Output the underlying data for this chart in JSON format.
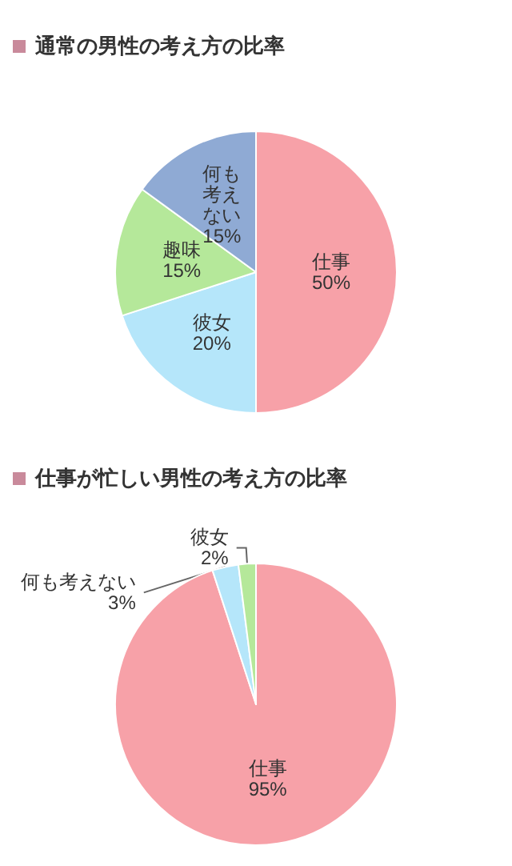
{
  "chart_data": [
    {
      "type": "pie",
      "title": "通常の男性の考え方の比率",
      "categories": [
        "仕事",
        "彼女",
        "趣味",
        "何も考えない"
      ],
      "values": [
        50,
        20,
        15,
        15
      ],
      "colors": [
        "#f7a1a8",
        "#b5e6fa",
        "#b5e89a",
        "#8faad4"
      ],
      "value_labels": [
        "50%",
        "20%",
        "15%",
        "15%"
      ]
    },
    {
      "type": "pie",
      "title": "仕事が忙しい男性の考え方の比率",
      "categories": [
        "仕事",
        "何も考えない",
        "彼女"
      ],
      "values": [
        95,
        3,
        2
      ],
      "colors": [
        "#f7a1a8",
        "#b5e6fa",
        "#b5e89a"
      ],
      "value_labels": [
        "95%",
        "3%",
        "2%"
      ]
    }
  ]
}
